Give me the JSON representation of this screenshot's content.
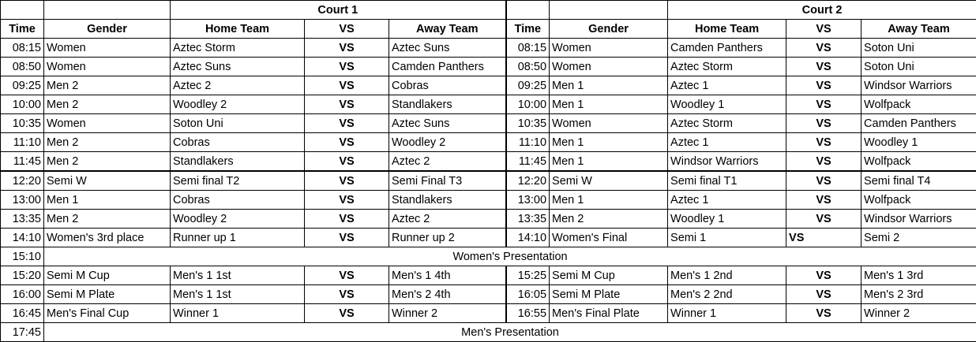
{
  "courts": [
    "Court 1",
    "Court 2"
  ],
  "headers": [
    "Time",
    "Gender",
    "Home Team",
    "VS",
    "Away Team"
  ],
  "rows": [
    {
      "c1": [
        "08:15",
        "Women",
        "Aztec Storm",
        "VS",
        "Aztec Suns"
      ],
      "c2": [
        "08:15",
        "Women",
        "Camden Panthers",
        "VS",
        "Soton Uni"
      ]
    },
    {
      "c1": [
        "08:50",
        "Women",
        "Aztec Suns",
        "VS",
        "Camden Panthers"
      ],
      "c2": [
        "08:50",
        "Women",
        "Aztec Storm",
        "VS",
        "Soton Uni"
      ]
    },
    {
      "c1": [
        "09:25",
        "Men 2",
        "Aztec 2",
        "VS",
        "Cobras"
      ],
      "c2": [
        "09:25",
        "Men 1",
        "Aztec 1",
        "VS",
        "Windsor Warriors"
      ]
    },
    {
      "c1": [
        "10:00",
        "Men 2",
        "Woodley 2",
        "VS",
        "Standlakers"
      ],
      "c2": [
        "10:00",
        "Men 1",
        "Woodley 1",
        "VS",
        "Wolfpack"
      ]
    },
    {
      "c1": [
        "10:35",
        "Women",
        "Soton Uni",
        "VS",
        "Aztec Suns"
      ],
      "c2": [
        "10:35",
        "Women",
        "Aztec Storm",
        "VS",
        "Camden Panthers"
      ]
    },
    {
      "c1": [
        "11:10",
        "Men 2",
        "Cobras",
        "VS",
        "Woodley 2"
      ],
      "c2": [
        "11:10",
        "Men 1",
        "Aztec 1",
        "VS",
        "Woodley 1"
      ]
    },
    {
      "c1": [
        "11:45",
        "Men 2",
        "Standlakers",
        "VS",
        "Aztec 2"
      ],
      "c2": [
        "11:45",
        "Men 1",
        "Windsor Warriors",
        "VS",
        "Wolfpack"
      ]
    },
    {
      "c1": [
        "12:20",
        "Semi W",
        "Semi final T2",
        "VS",
        "Semi Final T3"
      ],
      "c2": [
        "12:20",
        "Semi W",
        "Semi final T1",
        "VS",
        "Semi final T4"
      ]
    },
    {
      "c1": [
        "13:00",
        "Men 1",
        "Cobras",
        "VS",
        "Standlakers"
      ],
      "c2": [
        "13:00",
        "Men 1",
        "Aztec 1",
        "VS",
        "Wolfpack"
      ]
    },
    {
      "c1": [
        "13:35",
        "Men 2",
        "Woodley 2",
        "VS",
        "Aztec 2"
      ],
      "c2": [
        "13:35",
        "Men 2",
        "Woodley 1",
        "VS",
        "Windsor Warriors"
      ]
    },
    {
      "c1": [
        "14:10",
        "Women's 3rd place",
        "Runner up 1",
        "VS",
        "Runner up 2"
      ],
      "c2": [
        "14:10",
        "Women's Final",
        "Semi 1",
        "VS",
        "Semi 2"
      ]
    },
    {
      "time": "15:10",
      "label": "Women's Presentation"
    },
    {
      "c1": [
        "15:20",
        "Semi M Cup",
        "Men's 1 1st",
        "VS",
        "Men's 1 4th"
      ],
      "c2": [
        "15:25",
        "Semi M Cup",
        "Men's 1 2nd",
        "VS",
        "Men's 1 3rd"
      ]
    },
    {
      "c1": [
        "16:00",
        "Semi M Plate",
        "Men's 1 1st",
        "VS",
        "Men's 2 4th"
      ],
      "c2": [
        "16:05",
        "Semi M Plate",
        "Men's 2 2nd",
        "VS",
        "Men's 2 3rd"
      ]
    },
    {
      "c1": [
        "16:45",
        "Men's Final Cup",
        "Winner 1",
        "VS",
        "Winner 2"
      ],
      "c2": [
        "16:55",
        "Men's Final Plate",
        "Winner 1",
        "VS",
        "Winner 2"
      ]
    },
    {
      "time": "17:45",
      "label": "Men's Presentation"
    }
  ]
}
